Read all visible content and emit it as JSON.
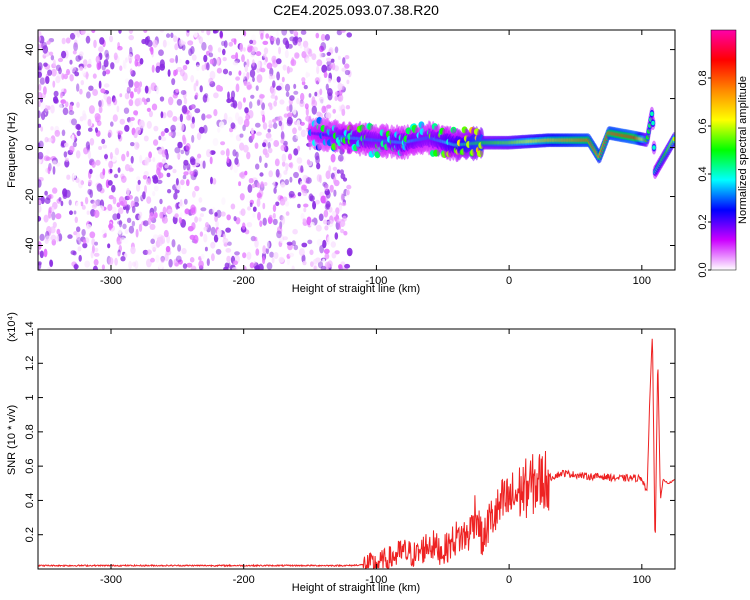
{
  "title": "C2E4.2025.093.07.38.R20",
  "chart_data": [
    {
      "type": "heatmap",
      "xlabel": "Height of straight line (km)",
      "ylabel": "Frequency (Hz)",
      "xlim": [
        -355,
        125
      ],
      "ylim": [
        -50,
        48
      ],
      "x_ticks": [
        -300,
        -200,
        -100,
        0,
        100
      ],
      "y_ticks": [
        -40,
        -20,
        0,
        20,
        40
      ],
      "colorbar": {
        "label": "Normalized spectral amplitude",
        "range": [
          0,
          1
        ],
        "ticks": [
          0.0,
          0.2,
          0.4,
          0.6,
          0.8
        ],
        "tick_labels": [
          "0.0",
          "0.2",
          "0.4",
          "0.6",
          "0.8"
        ],
        "colors": [
          "#ffffff",
          "#cc00ff",
          "#0000ff",
          "#00ffff",
          "#00ff00",
          "#ffff00",
          "#ff8800",
          "#ff0000",
          "#ff00aa"
        ]
      },
      "noise_region": {
        "x_range": [
          -355,
          -120
        ],
        "freq_range": [
          -50,
          48
        ],
        "amplitude": 0.15
      },
      "signal_track": [
        {
          "x": -150,
          "freq": 6,
          "amplitude": 0.2
        },
        {
          "x": -120,
          "freq": 4,
          "amplitude": 0.35
        },
        {
          "x": -100,
          "freq": 3,
          "amplitude": 0.3
        },
        {
          "x": -80,
          "freq": 2,
          "amplitude": 0.35
        },
        {
          "x": -60,
          "freq": 4,
          "amplitude": 0.3
        },
        {
          "x": -40,
          "freq": 1,
          "amplitude": 0.4
        },
        {
          "x": -20,
          "freq": 2,
          "amplitude": 0.5
        },
        {
          "x": 0,
          "freq": 2,
          "amplitude": 0.55
        },
        {
          "x": 30,
          "freq": 3,
          "amplitude": 0.7
        },
        {
          "x": 60,
          "freq": 3,
          "amplitude": 0.8
        },
        {
          "x": 68,
          "freq": -4,
          "amplitude": 0.75
        },
        {
          "x": 75,
          "freq": 6,
          "amplitude": 0.8
        },
        {
          "x": 95,
          "freq": 4,
          "amplitude": 0.85
        },
        {
          "x": 104,
          "freq": 3,
          "amplitude": 0.5
        },
        {
          "x": 108,
          "freq": 15,
          "amplitude": 0.4
        },
        {
          "x": 110,
          "freq": -10,
          "amplitude": 0.4
        },
        {
          "x": 125,
          "freq": 4,
          "amplitude": 0.6
        }
      ]
    },
    {
      "type": "line",
      "xlabel": "Height of straight line (km)",
      "ylabel": "SNR (10 * v/v)",
      "y_scale_label": "(x10⁴)",
      "xlim": [
        -355,
        125
      ],
      "ylim": [
        0,
        1.4
      ],
      "x_ticks": [
        -300,
        -200,
        -100,
        0,
        100
      ],
      "y_ticks": [
        0.2,
        0.4,
        0.6,
        0.8,
        1.0,
        1.2,
        1.4
      ],
      "color": "#ee2222",
      "series": [
        {
          "x": [
            -355,
            -300,
            -250,
            -200,
            -150,
            -120,
            -100,
            -90,
            -80,
            -70,
            -60,
            -50,
            -40,
            -30,
            -25,
            -20,
            -15,
            -10,
            -5,
            0,
            10,
            20,
            30,
            40,
            50,
            60,
            70,
            80,
            90,
            100,
            104,
            106,
            108,
            110,
            112,
            114,
            116,
            120,
            125
          ],
          "values": [
            0.02,
            0.02,
            0.02,
            0.02,
            0.02,
            0.02,
            0.03,
            0.06,
            0.1,
            0.08,
            0.15,
            0.1,
            0.18,
            0.2,
            0.35,
            0.15,
            0.28,
            0.32,
            0.38,
            0.4,
            0.46,
            0.5,
            0.53,
            0.56,
            0.55,
            0.54,
            0.54,
            0.53,
            0.53,
            0.53,
            0.45,
            1.0,
            1.38,
            0.1,
            1.25,
            0.4,
            0.52,
            0.5,
            0.52
          ]
        }
      ]
    }
  ]
}
